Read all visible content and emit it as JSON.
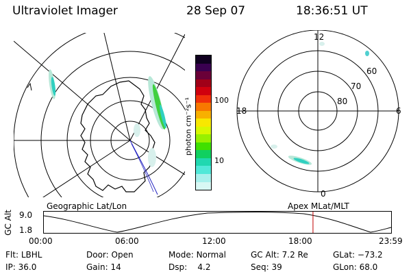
{
  "header": {
    "instrument": "Ultraviolet Imager",
    "date": "28 Sep 07",
    "time": "18:36:51 UT"
  },
  "colorbar": {
    "label": "photon cm⁻²s⁻¹",
    "ticks": [
      "100",
      "10"
    ],
    "colors": [
      "#100020",
      "#3a0050",
      "#6a0038",
      "#a00018",
      "#d0000e",
      "#f0300a",
      "#f87800",
      "#f8b000",
      "#f8e800",
      "#d8f800",
      "#98f000",
      "#40e000",
      "#10d060",
      "#20d8b0",
      "#50e8d8",
      "#a8f0ec",
      "#d8f8f4"
    ]
  },
  "geo_panel": {
    "label": "Geographic Lat/Lon"
  },
  "polar_panel": {
    "label": "Apex MLat/MLT",
    "mlt_labels": {
      "top": "12",
      "left": "18",
      "right": "6",
      "bottom": "0"
    },
    "lat_labels": [
      "60",
      "70",
      "80"
    ]
  },
  "altitude_plot": {
    "ylabel": "GC Alt",
    "y_ticks": [
      "9.0",
      "1.8"
    ],
    "x_ticks": [
      "00:00",
      "06:00",
      "12:00",
      "18:00",
      "23:59"
    ],
    "current_time_marker": "18:36"
  },
  "status": {
    "row1": [
      {
        "key": "Flt:",
        "value": "LBHL"
      },
      {
        "key": "Door:",
        "value": "Open"
      },
      {
        "key": "Mode:",
        "value": "Normal"
      },
      {
        "key": "GC Alt:",
        "value": "7.2 Re"
      },
      {
        "key": "GLat:",
        "value": "−73.2"
      }
    ],
    "row2": [
      {
        "key": "IP:",
        "value": "36.0"
      },
      {
        "key": "Gain:",
        "value": "14"
      },
      {
        "key": "Dsp:",
        "value": "4.2"
      },
      {
        "key": "Seq:",
        "value": "39"
      },
      {
        "key": "GLon:",
        "value": "68.0"
      }
    ]
  },
  "colors": {
    "aurora_light": "#b8e8d8",
    "aurora_mid": "#30d0c0",
    "aurora_bright": "#40d040",
    "orbit_track": "#2020c0",
    "marker": "#c00000"
  }
}
